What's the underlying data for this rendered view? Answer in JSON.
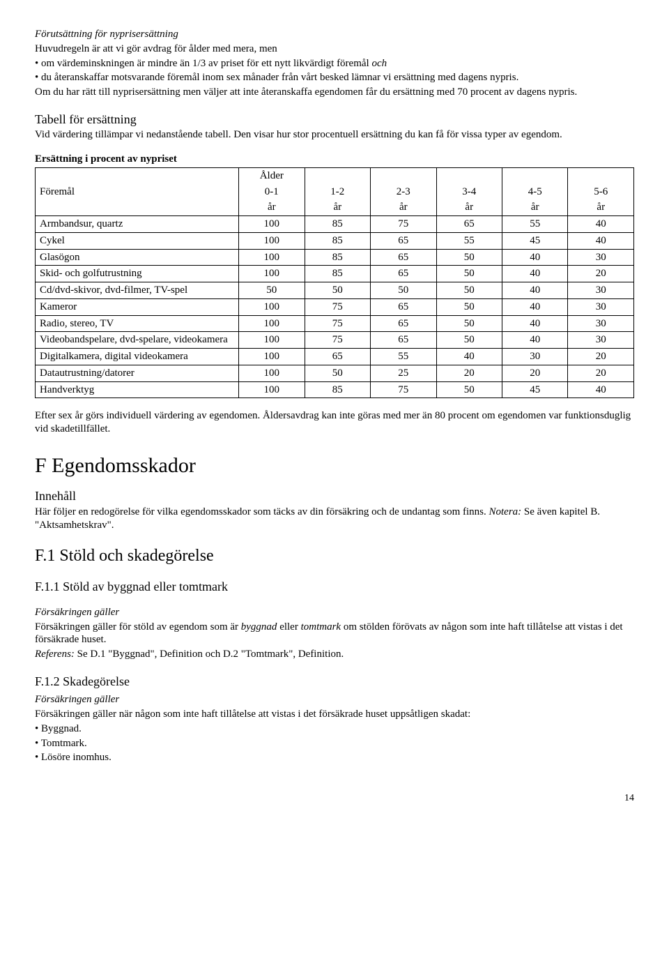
{
  "s1": {
    "title": "Förutsättning för nyprisersättning",
    "l1": "Huvudregeln är att vi gör avdrag för ålder med mera, men",
    "b1": "• om värdeminskningen är mindre än 1/3 av priset för ett nytt likvärdigt föremål och",
    "b2": "• du återanskaffar motsvarande föremål inom sex månader från vårt besked lämnar vi ersättning med dagens nypris.",
    "l2": "Om du har rätt till nyprisersättning men väljer att inte återanskaffa egendomen får du ersättning med 70 procent av dagens nypris."
  },
  "s2": {
    "title": "Tabell för ersättning",
    "l1": "Vid värdering tillämpar vi nedanstående tabell. Den visar hur stor procentuell ersättning du kan få för vissa typer av egendom."
  },
  "table": {
    "caption": "Ersättning i procent av nypriset",
    "headers": {
      "item": "Föremål",
      "age": "Ålder",
      "c1": "0-1",
      "c2": "1-2",
      "c3": "2-3",
      "c4": "3-4",
      "c5": "4-5",
      "c6": "5-6",
      "unit": "år"
    },
    "rows": [
      {
        "name": "Armbandsur, quartz",
        "v": [
          "100",
          "85",
          "75",
          "65",
          "55",
          "40"
        ]
      },
      {
        "name": "Cykel",
        "v": [
          "100",
          "85",
          "65",
          "55",
          "45",
          "40"
        ]
      },
      {
        "name": "Glasögon",
        "v": [
          "100",
          "85",
          "65",
          "50",
          "40",
          "30"
        ]
      },
      {
        "name": "Skid- och golfutrustning",
        "v": [
          "100",
          "85",
          "65",
          "50",
          "40",
          "20"
        ]
      },
      {
        "name": "Cd/dvd-skivor, dvd-filmer, TV-spel",
        "v": [
          "50",
          "50",
          "50",
          "50",
          "40",
          "30"
        ]
      },
      {
        "name": "Kameror",
        "v": [
          "100",
          "75",
          "65",
          "50",
          "40",
          "30"
        ]
      },
      {
        "name": "Radio, stereo, TV",
        "v": [
          "100",
          "75",
          "65",
          "50",
          "40",
          "30"
        ]
      },
      {
        "name": "Videobandspelare, dvd-spelare, videokamera",
        "v": [
          "100",
          "75",
          "65",
          "50",
          "40",
          "30"
        ]
      },
      {
        "name": "Digitalkamera, digital videokamera",
        "v": [
          "100",
          "65",
          "55",
          "40",
          "30",
          "20"
        ]
      },
      {
        "name": "Datautrustning/datorer",
        "v": [
          "100",
          "50",
          "25",
          "20",
          "20",
          "20"
        ]
      },
      {
        "name": "Handverktyg",
        "v": [
          "100",
          "85",
          "75",
          "50",
          "45",
          "40"
        ]
      }
    ]
  },
  "s3": {
    "l1": "Efter sex år görs individuell värdering av egendomen. Åldersavdrag kan inte göras med mer än 80 procent om egendomen var funktionsduglig vid skadetillfället."
  },
  "F": {
    "title": "F Egendomsskador",
    "intro_h": "Innehåll",
    "intro_1": "Här följer en redogörelse för vilka egendomsskador som täcks av din försäkring och de undantag som finns. ",
    "intro_2": "Notera:",
    "intro_3": " Se även kapitel B. \"Aktsamhetskrav\"."
  },
  "F1": {
    "title": "F.1 Stöld och skadegörelse"
  },
  "F11": {
    "title": "F.1.1 Stöld av byggnad eller tomtmark",
    "h": "Försäkringen gäller",
    "l1a": "Försäkringen gäller för stöld av egendom som är ",
    "l1b": "byggnad",
    "l1c": " eller ",
    "l1d": "tomtmark",
    "l1e": " om stölden förövats av någon som inte haft tillåtelse att vistas i det försäkrade huset.",
    "ref_a": "Referens:",
    "ref_b": " Se D.1 \"Byggnad\", Definition och D.2 \"Tomtmark\", Definition."
  },
  "F12": {
    "title": "F.1.2 Skadegörelse",
    "h": "Försäkringen gäller",
    "l1": "Försäkringen gäller när någon som inte haft tillåtelse att vistas i det försäkrade huset uppsåtligen skadat:",
    "b1": "• Byggnad.",
    "b2": "• Tomtmark.",
    "b3": "• Lösöre inomhus."
  },
  "page": "14"
}
